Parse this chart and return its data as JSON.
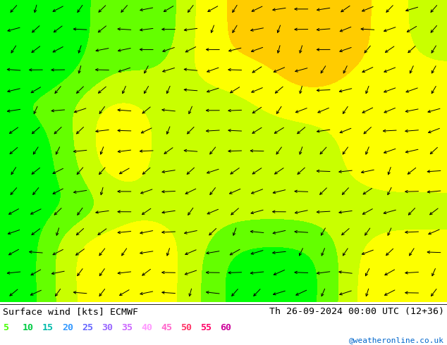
{
  "title_left": "Surface wind [kts] ECMWF",
  "title_right": "Th 26-09-2024 00:00 UTC (12+36)",
  "credit": "@weatheronline.co.uk",
  "legend_values": [
    5,
    10,
    15,
    20,
    25,
    30,
    35,
    40,
    45,
    50,
    55,
    60
  ],
  "legend_colors": [
    "#44ff00",
    "#00cc44",
    "#00bbaa",
    "#3399ff",
    "#6666ff",
    "#9966ff",
    "#cc66ff",
    "#ff99ff",
    "#ff66cc",
    "#ff3366",
    "#ff0066",
    "#cc0099"
  ],
  "colormap_colors": [
    "#00ccff",
    "#00ffcc",
    "#00ff00",
    "#66ff00",
    "#ccff00",
    "#ffff00",
    "#ffcc00",
    "#ff9900",
    "#ff6600",
    "#ff0000",
    "#cc0066",
    "#660099"
  ],
  "colormap_levels": [
    0,
    5,
    10,
    15,
    20,
    25,
    30,
    35,
    40,
    45,
    50,
    55,
    60
  ],
  "bg_color": "#ffffff",
  "fig_width": 6.34,
  "fig_height": 4.9,
  "dpi": 100,
  "extent": [
    -12,
    22,
    43,
    62
  ],
  "wind_seed": 42,
  "barb_seed": 99
}
